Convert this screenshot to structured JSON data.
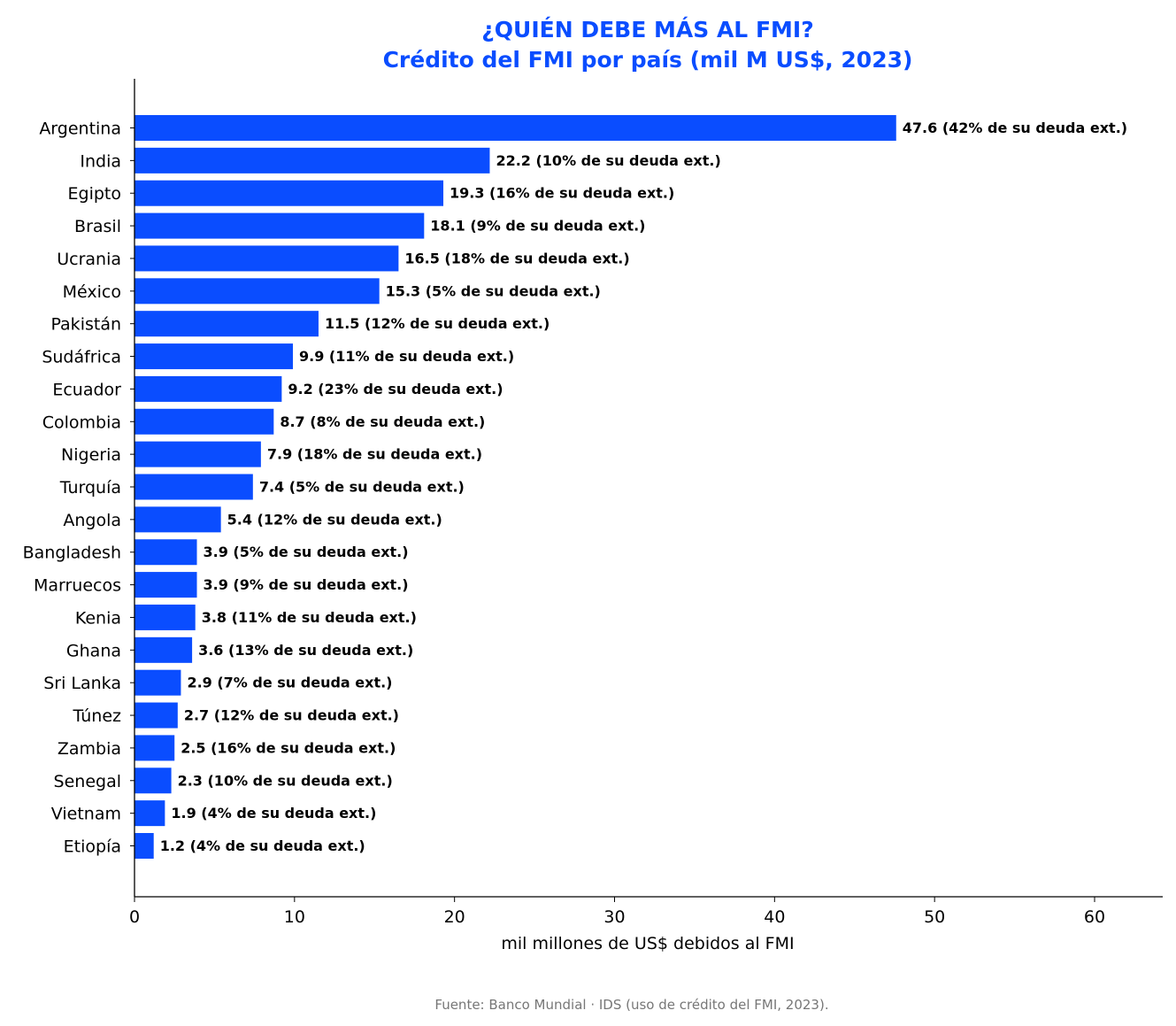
{
  "chart_data": {
    "type": "bar",
    "orientation": "horizontal",
    "title": "¿QUIÉN DEBE MÁS AL FMI?",
    "subtitle": "Crédito del FMI por país (mil M US$, 2023)",
    "xlabel": "mil millones de US$ debidos al FMI",
    "ylabel": "",
    "xlim": [
      0,
      64.2
    ],
    "xticks": [
      0,
      10,
      20,
      30,
      40,
      50,
      60
    ],
    "grid": false,
    "legend": "none",
    "bar_color": "#0a4dff",
    "title_color": "#0a4dff",
    "source": "Fuente: Banco Mundial · IDS (uso de crédito del FMI, 2023).",
    "categories": [
      "Argentina",
      "India",
      "Egipto",
      "Brasil",
      "Ucrania",
      "México",
      "Pakistán",
      "Sudáfrica",
      "Ecuador",
      "Colombia",
      "Nigeria",
      "Turquía",
      "Angola",
      "Bangladesh",
      "Marruecos",
      "Kenia",
      "Ghana",
      "Sri Lanka",
      "Túnez",
      "Zambia",
      "Senegal",
      "Vietnam",
      "Etiopía"
    ],
    "values": [
      47.6,
      22.2,
      19.3,
      18.1,
      16.5,
      15.3,
      11.5,
      9.9,
      9.2,
      8.7,
      7.9,
      7.4,
      5.4,
      3.9,
      3.9,
      3.8,
      3.6,
      2.9,
      2.7,
      2.5,
      2.3,
      1.9,
      1.2
    ],
    "data_labels": [
      "47.6  (42% de su deuda ext.)",
      "22.2  (10% de su deuda ext.)",
      "19.3  (16% de su deuda ext.)",
      "18.1  (9% de su deuda ext.)",
      "16.5  (18% de su deuda ext.)",
      "15.3  (5% de su deuda ext.)",
      "11.5  (12% de su deuda ext.)",
      "9.9  (11% de su deuda ext.)",
      "9.2  (23% de su deuda ext.)",
      "8.7  (8% de su deuda ext.)",
      "7.9  (18% de su deuda ext.)",
      "7.4  (5% de su deuda ext.)",
      "5.4  (12% de su deuda ext.)",
      "3.9  (5% de su deuda ext.)",
      "3.9  (9% de su deuda ext.)",
      "3.8  (11% de su deuda ext.)",
      "3.6  (13% de su deuda ext.)",
      "2.9  (7% de su deuda ext.)",
      "2.7  (12% de su deuda ext.)",
      "2.5  (16% de su deuda ext.)",
      "2.3  (10% de su deuda ext.)",
      "1.9  (4% de su deuda ext.)",
      "1.2  (4% de su deuda ext.)"
    ]
  }
}
